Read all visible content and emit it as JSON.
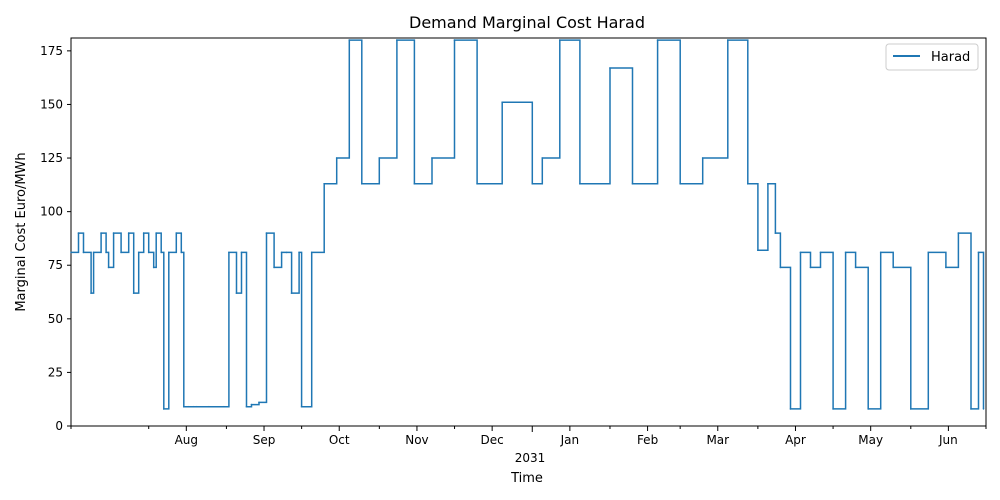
{
  "chart_data": {
    "type": "line",
    "title": "Demand Marginal Cost Harad",
    "xlabel": "Time",
    "ylabel": "Marginal Cost Euro/MWh",
    "ylim": [
      0,
      181
    ],
    "grid": false,
    "legend_position": "top-right",
    "y_ticks": [
      0,
      25,
      50,
      75,
      100,
      125,
      150,
      175
    ],
    "x_tick_labels": [
      "Aug",
      "Sep",
      "Oct",
      "Nov",
      "Dec",
      "Jan",
      "Feb",
      "Mar",
      "Apr",
      "May",
      "Jun"
    ],
    "x_year_label": "2031",
    "series": [
      {
        "name": "Harad",
        "color": "#1f77b4",
        "x": [
          "2030-07-01",
          "2030-07-04",
          "2030-07-06",
          "2030-07-09",
          "2030-07-10",
          "2030-07-13",
          "2030-07-15",
          "2030-07-16",
          "2030-07-18",
          "2030-07-21",
          "2030-07-24",
          "2030-07-26",
          "2030-07-28",
          "2030-07-30",
          "2030-08-01",
          "2030-08-03",
          "2030-08-04",
          "2030-08-06",
          "2030-08-07",
          "2030-08-09",
          "2030-08-12",
          "2030-08-14",
          "2030-08-15",
          "2030-08-17",
          "2030-08-19",
          "2030-08-20",
          "2030-08-25",
          "2030-08-31",
          "2030-09-02",
          "2030-09-05",
          "2030-09-07",
          "2030-09-09",
          "2030-09-11",
          "2030-09-14",
          "2030-09-17",
          "2030-09-20",
          "2030-09-23",
          "2030-09-25",
          "2030-09-27",
          "2030-09-30",
          "2030-10-01",
          "2030-10-05",
          "2030-10-10",
          "2030-10-15",
          "2030-10-20",
          "2030-10-25",
          "2030-11-01",
          "2030-11-08",
          "2030-11-15",
          "2030-11-22",
          "2030-12-01",
          "2030-12-10",
          "2030-12-20",
          "2031-01-01",
          "2031-01-05",
          "2031-01-12",
          "2031-01-20",
          "2031-02-01",
          "2031-02-10",
          "2031-02-20",
          "2031-03-01",
          "2031-03-10",
          "2031-03-20",
          "2031-03-28",
          "2031-04-01",
          "2031-04-05",
          "2031-04-08",
          "2031-04-10",
          "2031-04-14",
          "2031-04-18",
          "2031-04-22",
          "2031-04-26",
          "2031-05-01",
          "2031-05-06",
          "2031-05-10",
          "2031-05-15",
          "2031-05-20",
          "2031-05-25",
          "2031-06-01",
          "2031-06-08",
          "2031-06-15",
          "2031-06-20",
          "2031-06-25",
          "2031-06-28",
          "2031-06-30"
        ],
        "values": [
          81,
          90,
          81,
          62,
          81,
          90,
          81,
          74,
          90,
          81,
          90,
          62,
          81,
          90,
          81,
          74,
          90,
          81,
          8,
          81,
          90,
          81,
          9,
          9,
          9,
          9,
          9,
          9,
          81,
          62,
          81,
          9,
          10,
          11,
          90,
          74,
          81,
          81,
          62,
          81,
          9,
          81,
          113,
          125,
          180,
          113,
          125,
          180,
          113,
          125,
          180,
          113,
          151,
          113,
          125,
          180,
          113,
          167,
          113,
          180,
          113,
          125,
          180,
          113,
          82,
          113,
          90,
          74,
          8,
          81,
          74,
          81,
          8,
          81,
          74,
          8,
          81,
          74,
          8,
          81,
          74,
          90,
          8,
          81,
          8
        ]
      }
    ]
  }
}
